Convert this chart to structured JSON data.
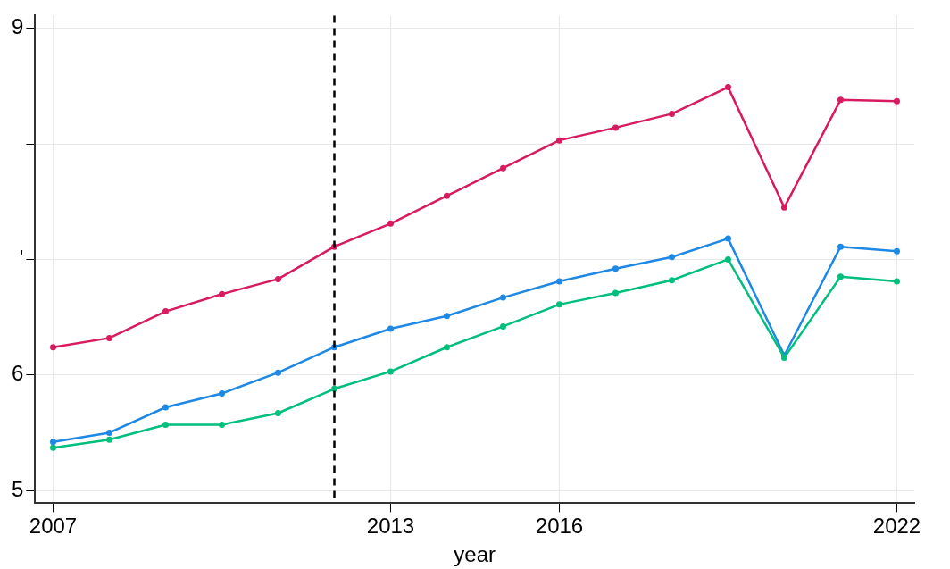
{
  "chart_data": {
    "type": "line",
    "xlabel": "year",
    "x": [
      2007,
      2008,
      2009,
      2010,
      2011,
      2012,
      2013,
      2014,
      2015,
      2016,
      2017,
      2018,
      2019,
      2020,
      2021,
      2022
    ],
    "series": [
      {
        "color": "#d81b60",
        "values": [
          6.24,
          6.32,
          6.55,
          6.7,
          6.83,
          7.11,
          7.31,
          7.55,
          7.79,
          8.03,
          8.14,
          8.26,
          8.49,
          7.45,
          8.38,
          8.37
        ]
      },
      {
        "color": "#1e88e5",
        "values": [
          5.42,
          5.5,
          5.72,
          5.84,
          6.02,
          6.24,
          6.4,
          6.51,
          6.67,
          6.81,
          6.92,
          7.02,
          7.18,
          6.17,
          7.11,
          7.07
        ]
      },
      {
        "color": "#00bf7d",
        "values": [
          5.37,
          5.44,
          5.57,
          5.57,
          5.67,
          5.88,
          6.03,
          6.24,
          6.42,
          6.61,
          6.71,
          6.82,
          7.0,
          6.15,
          6.85,
          6.81
        ]
      }
    ],
    "xlim": [
      2006.68,
      2022.31
    ],
    "xticks": [
      2007,
      2013,
      2016,
      2022
    ],
    "ylim": [
      4.89,
      9.11
    ],
    "yticks": [
      5,
      6,
      {
        "value": 7,
        "label": "'"
      },
      {
        "value": 8,
        "label": null
      },
      9
    ],
    "ref_lines": [
      {
        "axis": "x",
        "value": 2012,
        "color": "#000000",
        "line_style": "dashed"
      }
    ],
    "grid": true,
    "legend": false,
    "marker": "circle",
    "line_style": "solid"
  }
}
